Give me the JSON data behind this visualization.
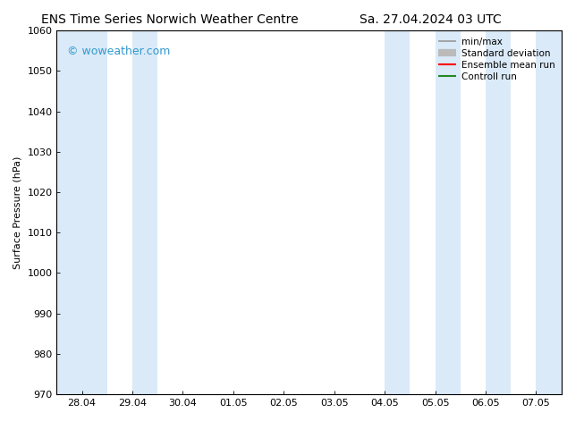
{
  "title_left": "ENS Time Series Norwich Weather Centre",
  "title_right": "Sa. 27.04.2024 03 UTC",
  "ylabel": "Surface Pressure (hPa)",
  "ylim": [
    970,
    1060
  ],
  "yticks": [
    970,
    980,
    990,
    1000,
    1010,
    1020,
    1030,
    1040,
    1050,
    1060
  ],
  "xtick_labels": [
    "28.04",
    "29.04",
    "30.04",
    "01.05",
    "02.05",
    "03.05",
    "04.05",
    "05.05",
    "06.05",
    "07.05"
  ],
  "xtick_positions": [
    0,
    1,
    2,
    3,
    4,
    5,
    6,
    7,
    8,
    9
  ],
  "xlim": [
    -0.5,
    9.5
  ],
  "watermark": "© woweather.com",
  "watermark_color": "#3399cc",
  "bg_color": "#ffffff",
  "plot_bg_color": "#ffffff",
  "band_color": "#daeaf8",
  "shaded_bands": [
    {
      "x_start": -0.5,
      "x_end": 0.5
    },
    {
      "x_start": 1.0,
      "x_end": 1.5
    },
    {
      "x_start": 6.0,
      "x_end": 6.5
    },
    {
      "x_start": 7.0,
      "x_end": 7.5
    },
    {
      "x_start": 8.0,
      "x_end": 8.5
    },
    {
      "x_start": 9.0,
      "x_end": 9.5
    }
  ],
  "legend_labels": [
    "min/max",
    "Standard deviation",
    "Ensemble mean run",
    "Controll run"
  ],
  "legend_colors": [
    "#999999",
    "#bbbbbb",
    "#ff0000",
    "#228822"
  ],
  "legend_linewidths": [
    1.2,
    6,
    1.5,
    1.5
  ],
  "font_family": "DejaVu Sans",
  "title_fontsize": 10,
  "ylabel_fontsize": 8,
  "tick_fontsize": 8,
  "legend_fontsize": 7.5,
  "watermark_fontsize": 9
}
